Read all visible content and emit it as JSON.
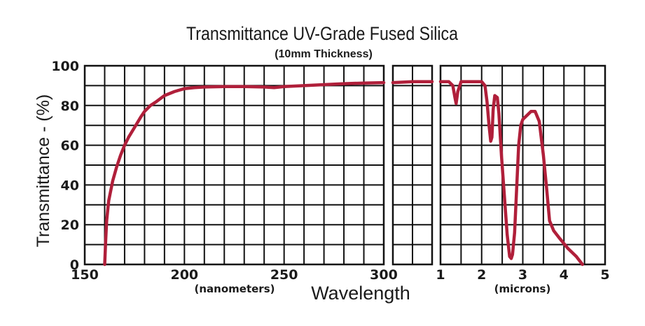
{
  "chart_data": {
    "type": "line",
    "title": "Transmittance UV-Grade Fused Silica",
    "subtitle": "(10mm Thickness)",
    "ylabel": "Transmittance - (%)",
    "xlabel": "Wavelength",
    "ylim": [
      0,
      100
    ],
    "yticks": [
      "0",
      "20",
      "40",
      "60",
      "80",
      "100"
    ],
    "grid": true,
    "line_color": "#b01f3a",
    "panels": [
      {
        "unit_label": "(nanometers)",
        "xlim": [
          150,
          300
        ],
        "xticks": [
          "150",
          "200",
          "250",
          "300"
        ],
        "x": [
          160,
          160.5,
          161,
          162,
          164,
          166,
          168,
          170,
          172,
          175,
          178,
          180,
          183,
          186,
          190,
          195,
          200,
          205,
          210,
          220,
          230,
          240,
          245,
          250,
          260,
          270,
          280,
          290,
          300
        ],
        "y": [
          0,
          12,
          22,
          32,
          42,
          49,
          55,
          60,
          64,
          69,
          74,
          77,
          80,
          82,
          85,
          87,
          88.5,
          89,
          89.3,
          89.5,
          89.5,
          89.3,
          89,
          89.5,
          90,
          90.5,
          91,
          91.3,
          91.5
        ]
      },
      {
        "unit_label": "",
        "xlim": [
          0,
          1
        ],
        "xticks": [],
        "x": [
          0,
          0.5,
          1
        ],
        "y": [
          91.5,
          92,
          92
        ]
      },
      {
        "unit_label": "(microns)",
        "xlim": [
          1,
          5
        ],
        "xticks": [
          "1",
          "2",
          "3",
          "4",
          "5"
        ],
        "x": [
          1.0,
          1.2,
          1.3,
          1.35,
          1.38,
          1.42,
          1.5,
          1.8,
          2.0,
          2.08,
          2.13,
          2.18,
          2.22,
          2.25,
          2.28,
          2.32,
          2.38,
          2.42,
          2.48,
          2.55,
          2.62,
          2.68,
          2.72,
          2.75,
          2.8,
          2.85,
          2.9,
          2.95,
          3.0,
          3.1,
          3.2,
          3.3,
          3.4,
          3.5,
          3.58,
          3.65,
          3.75,
          3.9,
          4.1,
          4.3,
          4.45
        ],
        "y": [
          92,
          92,
          90,
          84,
          81,
          87,
          92,
          92,
          92,
          90,
          82,
          70,
          62,
          64,
          78,
          85,
          84,
          76,
          55,
          35,
          15,
          4,
          3,
          5,
          16,
          38,
          60,
          70,
          73,
          75,
          77,
          77,
          72,
          55,
          38,
          22,
          17,
          13,
          8,
          4,
          0
        ]
      }
    ]
  }
}
